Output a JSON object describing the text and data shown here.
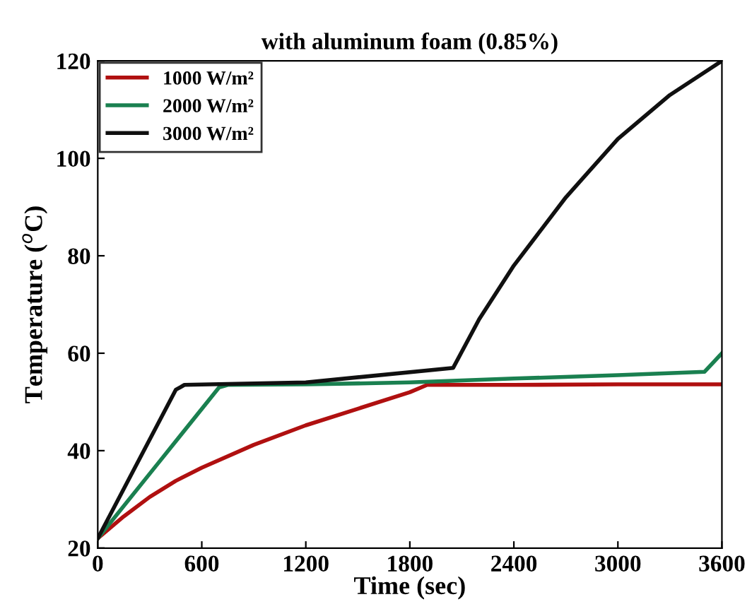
{
  "chart_data": {
    "type": "line",
    "title": "with aluminum foam (0.85%)",
    "xlabel": "Time (sec)",
    "ylabel": "Temperature ($^{o}$C)",
    "xlim": [
      0,
      3600
    ],
    "xticks": [
      0,
      600,
      1200,
      1800,
      2400,
      3000,
      3600
    ],
    "ylim": [
      20,
      120
    ],
    "yticks": [
      20,
      40,
      60,
      80,
      100,
      120
    ],
    "grid": false,
    "legend": "top left",
    "line_style": "solid",
    "marker": "none",
    "series": [
      {
        "name": "1000 W/m²",
        "color": "#b01010",
        "x": [
          0,
          150,
          300,
          450,
          600,
          900,
          1200,
          1500,
          1800,
          1900,
          2400,
          3000,
          3600
        ],
        "values": [
          22,
          26.5,
          30.5,
          33.8,
          36.5,
          41.2,
          45.2,
          48.6,
          52,
          53.5,
          53.5,
          53.6,
          53.6
        ]
      },
      {
        "name": "2000 W/m²",
        "color": "#1a8050",
        "x": [
          0,
          350,
          700,
          750,
          1200,
          1800,
          2400,
          3000,
          3500,
          3600
        ],
        "values": [
          22,
          37.5,
          53,
          53.5,
          53.6,
          54,
          54.8,
          55.5,
          56.2,
          60
        ]
      },
      {
        "name": "3000 W/m²",
        "color": "#101010",
        "x": [
          0,
          450,
          500,
          1200,
          2050,
          2200,
          2400,
          2700,
          3000,
          3300,
          3600
        ],
        "values": [
          22,
          52.5,
          53.5,
          54,
          57,
          67,
          78,
          92,
          104,
          113,
          120
        ]
      }
    ]
  }
}
